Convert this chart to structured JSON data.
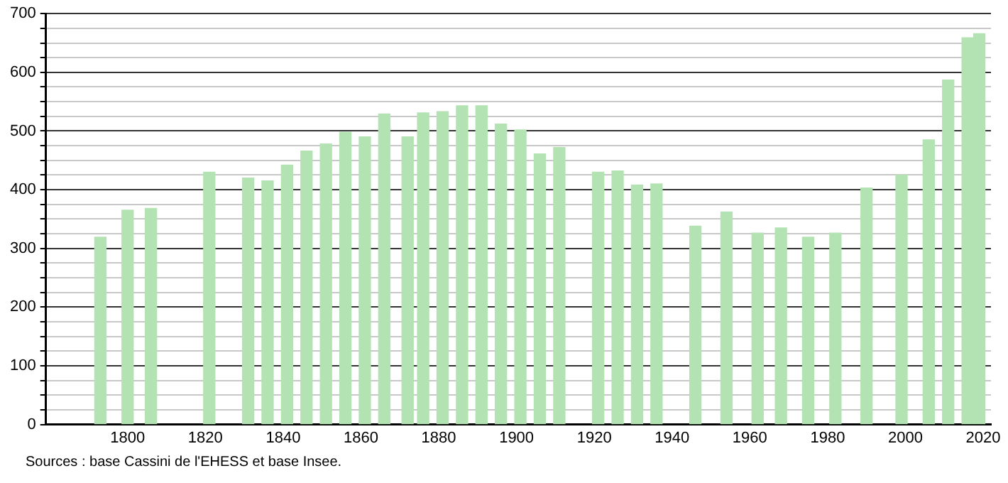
{
  "chart_data": {
    "type": "bar",
    "x": [
      1793,
      1800,
      1806,
      1821,
      1831,
      1836,
      1841,
      1846,
      1851,
      1856,
      1861,
      1866,
      1872,
      1876,
      1881,
      1886,
      1891,
      1896,
      1901,
      1906,
      1911,
      1921,
      1926,
      1931,
      1936,
      1946,
      1954,
      1962,
      1968,
      1975,
      1982,
      1990,
      1999,
      2006,
      2011,
      2016,
      2019
    ],
    "values": [
      319,
      365,
      368,
      430,
      420,
      415,
      442,
      466,
      478,
      498,
      490,
      529,
      490,
      531,
      533,
      543,
      543,
      512,
      502,
      461,
      472,
      430,
      432,
      408,
      410,
      338,
      362,
      326,
      335,
      319,
      326,
      403,
      425,
      485,
      587,
      659,
      666
    ],
    "color": "#b3e3b3",
    "xlim": [
      1779,
      2022
    ],
    "xticks": [
      1800,
      1820,
      1840,
      1860,
      1880,
      1900,
      1920,
      1940,
      1960,
      1980,
      2000,
      2020
    ],
    "ylim": [
      0,
      700
    ],
    "yticks": [
      0,
      {
        "value": 25,
        "label": null
      },
      {
        "value": 50,
        "label": null
      },
      {
        "value": 75,
        "label": null
      },
      100,
      {
        "value": 125,
        "label": null
      },
      {
        "value": 150,
        "label": null
      },
      {
        "value": 175,
        "label": null
      },
      200,
      {
        "value": 225,
        "label": null
      },
      {
        "value": 250,
        "label": null
      },
      {
        "value": 275,
        "label": null
      },
      300,
      {
        "value": 325,
        "label": null
      },
      {
        "value": 350,
        "label": null
      },
      {
        "value": 375,
        "label": null
      },
      400,
      {
        "value": 425,
        "label": null
      },
      {
        "value": 450,
        "label": null
      },
      {
        "value": 475,
        "label": null
      },
      500,
      {
        "value": 525,
        "label": null
      },
      {
        "value": 550,
        "label": null
      },
      {
        "value": 575,
        "label": null
      },
      600,
      {
        "value": 625,
        "label": null
      },
      {
        "value": 650,
        "label": null
      },
      {
        "value": 675,
        "label": null
      },
      700
    ],
    "grid": "y",
    "annotations": [
      "Sources : base Cassini de l'EHESS et base Insee."
    ]
  }
}
